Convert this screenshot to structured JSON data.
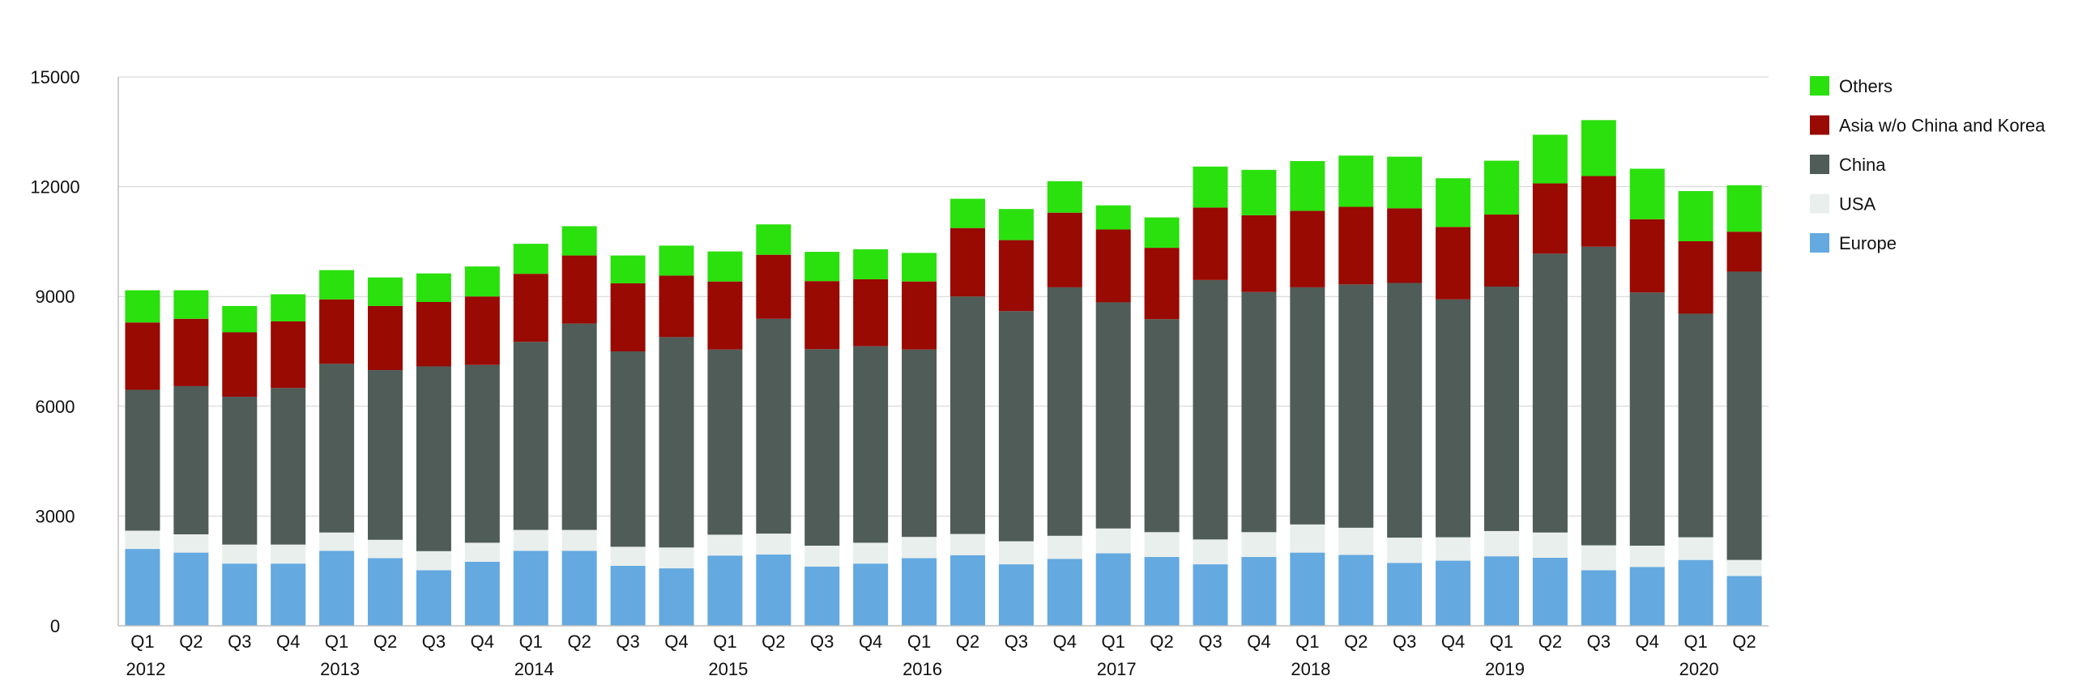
{
  "chart_data": {
    "type": "bar",
    "stacked": true,
    "title": "",
    "xlabel": "",
    "ylabel": "",
    "ylim": [
      0,
      15000
    ],
    "yticks": [
      "0",
      "3000",
      "6000",
      "9000",
      "12000",
      "15000"
    ],
    "grid": true,
    "legend_position": "right",
    "categories": [
      "Q1",
      "Q2",
      "Q3",
      "Q4",
      "Q1",
      "Q2",
      "Q3",
      "Q4",
      "Q1",
      "Q2",
      "Q3",
      "Q4",
      "Q1",
      "Q2",
      "Q3",
      "Q4",
      "Q1",
      "Q2",
      "Q3",
      "Q4",
      "Q1",
      "Q2",
      "Q3",
      "Q4",
      "Q1",
      "Q2",
      "Q3",
      "Q4",
      "Q1",
      "Q2",
      "Q3",
      "Q4",
      "Q1",
      "Q2"
    ],
    "years": [
      {
        "label": "2012",
        "start_index": 0
      },
      {
        "label": "2013",
        "start_index": 4
      },
      {
        "label": "2014",
        "start_index": 8
      },
      {
        "label": "2015",
        "start_index": 12
      },
      {
        "label": "2016",
        "start_index": 16
      },
      {
        "label": "2017",
        "start_index": 20
      },
      {
        "label": "2018",
        "start_index": 24
      },
      {
        "label": "2019",
        "start_index": 28
      },
      {
        "label": "2020",
        "start_index": 32
      }
    ],
    "series": [
      {
        "name": "Europe",
        "color": "#64a9e0",
        "values": [
          2100,
          2000,
          1700,
          1700,
          2050,
          1850,
          1520,
          1750,
          2050,
          2050,
          1640,
          1570,
          1920,
          1950,
          1620,
          1700,
          1850,
          1930,
          1680,
          1830,
          1980,
          1880,
          1680,
          1880,
          2000,
          1940,
          1720,
          1780,
          1900,
          1860,
          1520,
          1610,
          1800,
          1360
        ]
      },
      {
        "name": "USA",
        "color": "#e9efed",
        "values": [
          500,
          500,
          520,
          520,
          500,
          500,
          520,
          520,
          570,
          570,
          520,
          570,
          570,
          570,
          570,
          570,
          580,
          580,
          630,
          630,
          680,
          680,
          680,
          680,
          770,
          740,
          690,
          640,
          690,
          690,
          680,
          580,
          620,
          440
        ]
      },
      {
        "name": "China",
        "color": "#4f5c57",
        "values": [
          3850,
          4050,
          4040,
          4280,
          4610,
          4640,
          5050,
          4860,
          5140,
          5640,
          5340,
          5750,
          5060,
          5870,
          5370,
          5370,
          5120,
          6490,
          6290,
          6790,
          6180,
          5820,
          7090,
          6560,
          6480,
          6650,
          6960,
          6500,
          6680,
          7620,
          8160,
          6920,
          6110,
          7880
        ]
      },
      {
        "name": "Asia w/o China and Korea",
        "color": "#980a02",
        "values": [
          1840,
          1840,
          1760,
          1820,
          1760,
          1750,
          1760,
          1870,
          1860,
          1860,
          1860,
          1680,
          1860,
          1750,
          1860,
          1830,
          1860,
          1870,
          1940,
          2040,
          1990,
          1950,
          1980,
          2100,
          2090,
          2120,
          2040,
          1980,
          1970,
          1920,
          1930,
          2000,
          1980,
          1090
        ]
      },
      {
        "name": "Others",
        "color": "#2ae00d",
        "values": [
          880,
          780,
          720,
          740,
          800,
          780,
          780,
          820,
          820,
          800,
          760,
          820,
          820,
          830,
          800,
          820,
          780,
          800,
          850,
          860,
          660,
          830,
          1120,
          1240,
          1360,
          1400,
          1410,
          1330,
          1470,
          1330,
          1530,
          1380,
          1370,
          1270
        ]
      }
    ]
  }
}
